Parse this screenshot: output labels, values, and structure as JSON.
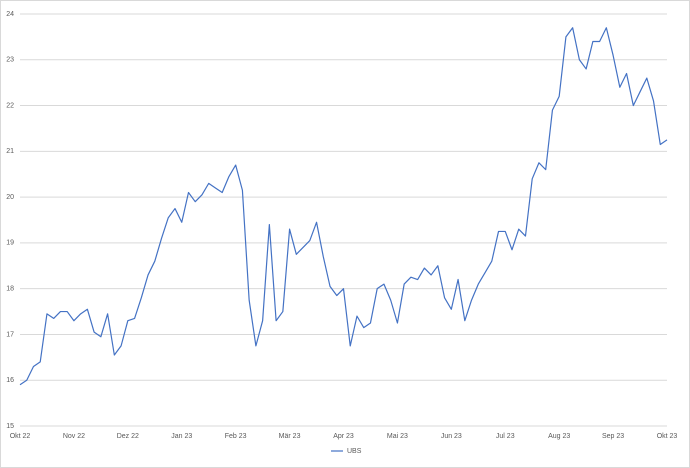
{
  "chart_data": {
    "type": "line",
    "categories": [
      "Okt 22",
      null,
      null,
      null,
      null,
      null,
      null,
      null,
      "Nov 22",
      null,
      null,
      null,
      null,
      null,
      null,
      null,
      "Dez 22",
      null,
      null,
      null,
      null,
      null,
      null,
      null,
      "Jan 23",
      null,
      null,
      null,
      null,
      null,
      null,
      null,
      "Feb 23",
      null,
      null,
      null,
      null,
      null,
      null,
      null,
      "Mär 23",
      null,
      null,
      null,
      null,
      null,
      null,
      null,
      "Apr 23",
      null,
      null,
      null,
      null,
      null,
      null,
      null,
      "Mai 23",
      null,
      null,
      null,
      null,
      null,
      null,
      null,
      "Jun 23",
      null,
      null,
      null,
      null,
      null,
      null,
      null,
      "Jul 23",
      null,
      null,
      null,
      null,
      null,
      null,
      null,
      "Aug 23",
      null,
      null,
      null,
      null,
      null,
      null,
      null,
      "Sep 23",
      null,
      null,
      null,
      null,
      null,
      null,
      null,
      "Okt 23"
    ],
    "series": [
      {
        "name": "UBS",
        "color": "#4472c4",
        "values": [
          15.9,
          16.0,
          16.3,
          16.4,
          17.45,
          17.35,
          17.5,
          17.5,
          17.3,
          17.45,
          17.55,
          17.05,
          16.95,
          17.45,
          16.55,
          16.75,
          17.3,
          17.35,
          17.8,
          18.3,
          18.6,
          19.1,
          19.55,
          19.75,
          19.45,
          20.1,
          19.9,
          20.05,
          20.3,
          20.2,
          20.1,
          20.45,
          20.7,
          20.15,
          17.75,
          16.75,
          17.3,
          19.4,
          17.3,
          17.5,
          19.3,
          18.75,
          18.9,
          19.05,
          19.45,
          18.7,
          18.05,
          17.85,
          18.0,
          16.75,
          17.4,
          17.15,
          17.25,
          18.0,
          18.1,
          17.75,
          17.25,
          18.1,
          18.25,
          18.2,
          18.45,
          18.3,
          18.5,
          17.8,
          17.55,
          18.2,
          17.3,
          17.75,
          18.1,
          18.35,
          18.6,
          19.25,
          19.25,
          18.85,
          19.3,
          19.15,
          20.4,
          20.75,
          20.6,
          21.9,
          22.2,
          23.5,
          23.7,
          23.0,
          22.8,
          23.4,
          23.4,
          23.7,
          23.1,
          22.4,
          22.7,
          22.0,
          22.3,
          22.6,
          22.1,
          21.15,
          21.25
        ]
      }
    ],
    "ylim": [
      15,
      24
    ],
    "yticks": [
      15,
      16,
      17,
      18,
      19,
      20,
      21,
      22,
      23,
      24
    ],
    "grid": true,
    "legend": "bottom"
  }
}
